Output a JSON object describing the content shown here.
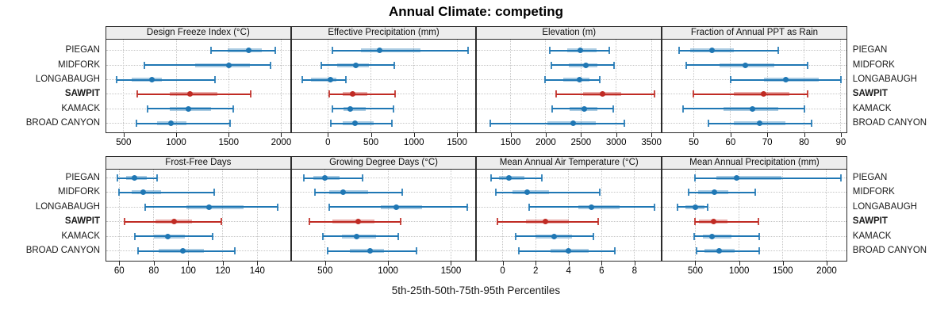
{
  "title": "Annual Climate: competing",
  "caption": "5th-25th-50th-75th-95th Percentiles",
  "colors": {
    "primary_blue": "#1f77b4",
    "band_blue": "rgba(31,119,180,0.38)",
    "highlight_red": "#c02b24",
    "band_red": "rgba(192,43,36,0.38)",
    "header_bg": "#ededed",
    "panel_border": "#2b2b2b",
    "grid": "#c6c6c6"
  },
  "chart_data": {
    "type": "percentile-dotplot",
    "percentile_levels": [
      5,
      25,
      50,
      75,
      95
    ],
    "sites": [
      "PIEGAN",
      "MIDFORK",
      "LONGABAUGH",
      "SAWPIT",
      "KAMACK",
      "BROAD CANYON"
    ],
    "highlight_site": "SAWPIT",
    "legend": "grid on, dotted; panel strip headers; SAWPIT series drawn in red, all others blue",
    "panels": [
      {
        "title": "Design Freeze Index (°C)",
        "axis_min": 335,
        "axis_max": 2085,
        "ticks": [
          500,
          1000,
          1500,
          2000
        ],
        "values": [
          [
            1330,
            1490,
            1690,
            1815,
            1945
          ],
          [
            700,
            1180,
            1500,
            1705,
            1900
          ],
          [
            435,
            575,
            770,
            865,
            1370
          ],
          [
            630,
            940,
            1135,
            1390,
            1710
          ],
          [
            730,
            940,
            1120,
            1330,
            1540
          ],
          [
            625,
            815,
            950,
            1095,
            1510
          ]
        ]
      },
      {
        "title": "Effective Precipitation (mm)",
        "axis_min": -420,
        "axis_max": 1715,
        "ticks": [
          0,
          500,
          1000,
          1500
        ],
        "values": [
          [
            55,
            380,
            600,
            1075,
            1630
          ],
          [
            -75,
            110,
            325,
            480,
            770
          ],
          [
            -295,
            -195,
            30,
            100,
            205
          ],
          [
            15,
            175,
            285,
            455,
            785
          ],
          [
            55,
            180,
            260,
            440,
            760
          ],
          [
            30,
            175,
            315,
            530,
            745
          ]
        ]
      },
      {
        "title": "Elevation (m)",
        "axis_min": 1025,
        "axis_max": 3635,
        "ticks": [
          1500,
          2000,
          2500,
          3000,
          3500
        ],
        "values": [
          [
            2055,
            2300,
            2490,
            2720,
            2900
          ],
          [
            2085,
            2330,
            2565,
            2735,
            2965
          ],
          [
            1990,
            2245,
            2480,
            2620,
            2770
          ],
          [
            2145,
            2525,
            2810,
            3075,
            3540
          ],
          [
            2095,
            2340,
            2545,
            2735,
            2960
          ],
          [
            1210,
            2020,
            2385,
            2715,
            3120
          ]
        ]
      },
      {
        "title": "Fraction of Annual PPT as Rain",
        "axis_min": 41.5,
        "axis_max": 91.5,
        "ticks": [
          50,
          60,
          70,
          80,
          90
        ],
        "values": [
          [
            46,
            49,
            55,
            61,
            73
          ],
          [
            48,
            57,
            64,
            72,
            81
          ],
          [
            60,
            69,
            75,
            84,
            90
          ],
          [
            50,
            61,
            69,
            76,
            81
          ],
          [
            47,
            58,
            66,
            73,
            80
          ],
          [
            54,
            61,
            68,
            75,
            82
          ]
        ]
      },
      {
        "title": "Frost-Free Days",
        "axis_min": 52.5,
        "axis_max": 159,
        "ticks": [
          60,
          80,
          100,
          120,
          140
        ],
        "values": [
          [
            59,
            64,
            69,
            76,
            82
          ],
          [
            60,
            67,
            74,
            84,
            115
          ],
          [
            75,
            99,
            112,
            132,
            152
          ],
          [
            63,
            81,
            92,
            102,
            119
          ],
          [
            69,
            80,
            88,
            98,
            114
          ],
          [
            71,
            83,
            97,
            109,
            127
          ]
        ]
      },
      {
        "title": "Growing Degree Days (°C)",
        "axis_min": 235,
        "axis_max": 1695,
        "ticks": [
          500,
          1000,
          1500
        ],
        "values": [
          [
            330,
            405,
            500,
            615,
            800
          ],
          [
            420,
            535,
            645,
            840,
            1115
          ],
          [
            535,
            945,
            1065,
            1270,
            1630
          ],
          [
            375,
            560,
            765,
            895,
            1100
          ],
          [
            480,
            635,
            750,
            905,
            1080
          ],
          [
            520,
            700,
            855,
            970,
            1225
          ]
        ]
      },
      {
        "title": "Mean Annual Air Temperature (°C)",
        "axis_min": -1.55,
        "axis_max": 9.6,
        "ticks": [
          0,
          2,
          4,
          6,
          8
        ],
        "values": [
          [
            -0.7,
            -0.2,
            0.4,
            1.3,
            2.4
          ],
          [
            -0.4,
            0.6,
            1.5,
            2.8,
            5.9
          ],
          [
            1.6,
            4.6,
            5.4,
            7.1,
            9.2
          ],
          [
            -0.3,
            1.4,
            2.6,
            4.0,
            5.8
          ],
          [
            0.8,
            2.0,
            3.1,
            4.2,
            5.5
          ],
          [
            1.0,
            2.9,
            4.0,
            5.2,
            6.8
          ]
        ]
      },
      {
        "title": "Mean Annual Precipitation (mm)",
        "axis_min": 125,
        "axis_max": 2225,
        "ticks": [
          500,
          1000,
          1500,
          2000
        ],
        "values": [
          [
            495,
            740,
            970,
            1480,
            2160
          ],
          [
            420,
            535,
            720,
            875,
            1185
          ],
          [
            300,
            390,
            500,
            605,
            640
          ],
          [
            495,
            545,
            710,
            870,
            1225
          ],
          [
            490,
            590,
            690,
            915,
            1230
          ],
          [
            510,
            605,
            770,
            945,
            1230
          ]
        ]
      }
    ]
  }
}
